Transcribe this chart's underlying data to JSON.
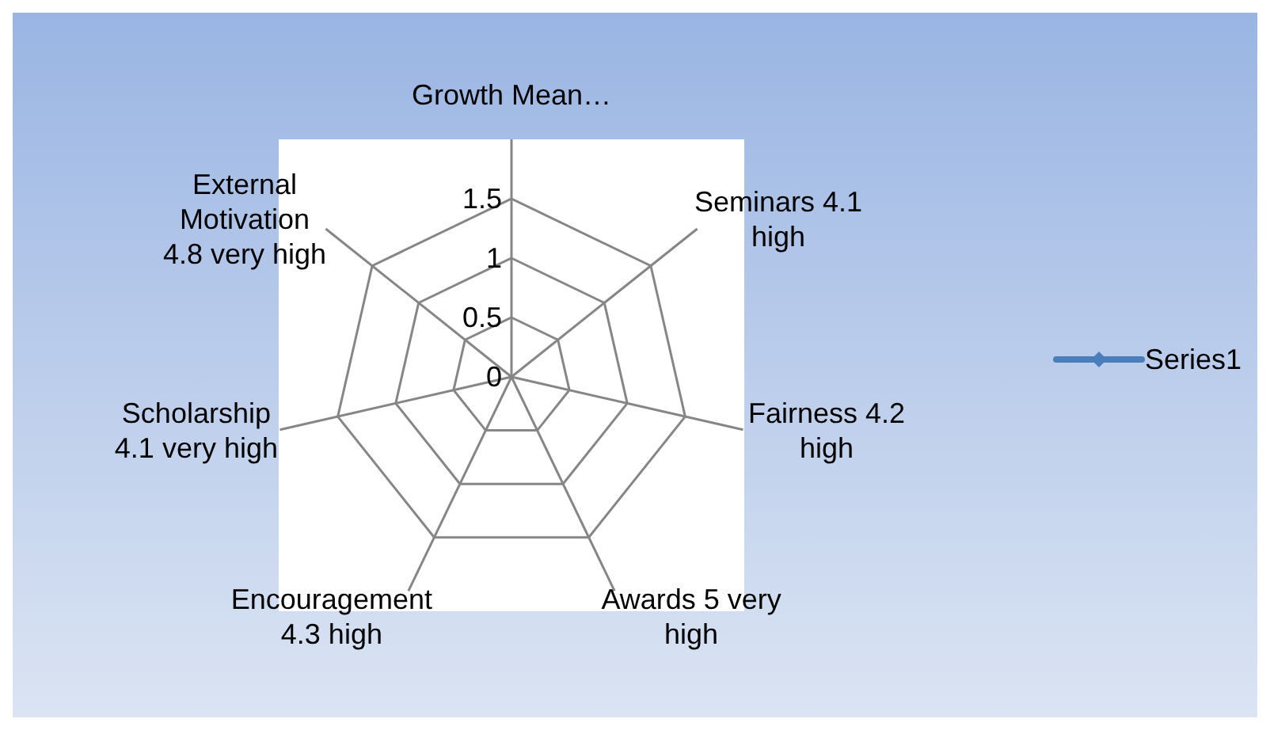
{
  "chart_data": {
    "type": "radar",
    "categories": [
      "Growth Mean…",
      "Seminars 4.1 high",
      "Fairness 4.2 high",
      "Awards 5 very high",
      "Encouragement 4.3 high",
      "Scholarship 4.1 very high",
      "External Motivation 4.8 very high"
    ],
    "series": [
      {
        "name": "Series1",
        "color": "#4a7ebb",
        "values": [
          null,
          null,
          null,
          null,
          null,
          null,
          null
        ]
      }
    ],
    "ylim": [
      0,
      1.5
    ],
    "yticks": [
      0,
      0.5,
      1,
      1.5
    ],
    "grid": true,
    "legend": "right",
    "marker": "diamond"
  }
}
